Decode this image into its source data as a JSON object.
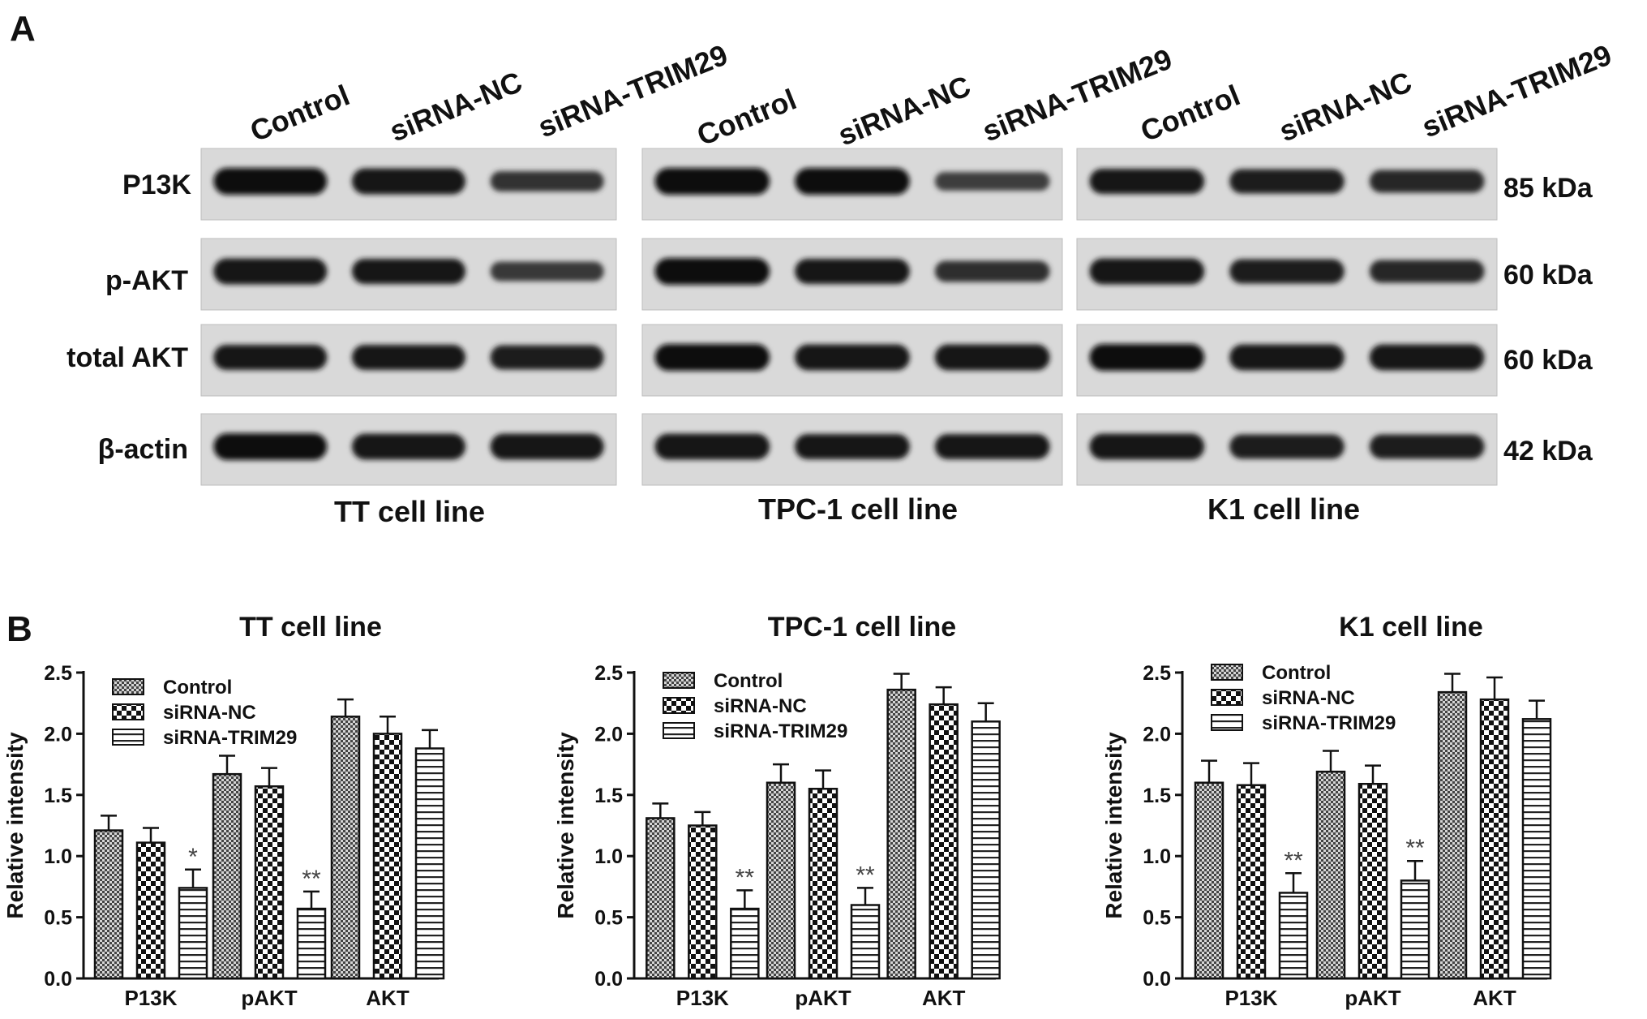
{
  "panel_a": {
    "label": "A",
    "lanes": [
      "Control",
      "siRNA-NC",
      "siRNA-TRIM29"
    ],
    "proteins": [
      {
        "name": "P13K",
        "weight": "85 kDa"
      },
      {
        "name": "p-AKT",
        "weight": "60 kDa"
      },
      {
        "name": "total AKT",
        "weight": "60 kDa"
      },
      {
        "name": "β-actin",
        "weight": "42 kDa"
      }
    ],
    "blots": [
      {
        "caption": "TT cell line",
        "band_intensity": [
          [
            0.95,
            0.9,
            0.55
          ],
          [
            0.9,
            0.85,
            0.5
          ],
          [
            0.85,
            0.85,
            0.8
          ],
          [
            0.95,
            0.9,
            0.9
          ]
        ]
      },
      {
        "caption": "TPC-1 cell line",
        "band_intensity": [
          [
            0.95,
            0.95,
            0.45
          ],
          [
            0.95,
            0.85,
            0.6
          ],
          [
            0.95,
            0.9,
            0.9
          ],
          [
            0.9,
            0.85,
            0.85
          ]
        ]
      },
      {
        "caption": "K1 cell line",
        "band_intensity": [
          [
            0.85,
            0.8,
            0.7
          ],
          [
            0.9,
            0.8,
            0.7
          ],
          [
            0.95,
            0.9,
            0.9
          ],
          [
            0.9,
            0.8,
            0.8
          ]
        ]
      }
    ]
  },
  "panel_b": {
    "label": "B"
  },
  "chart_data": [
    {
      "type": "bar",
      "title": "TT cell line",
      "xlabel": "",
      "ylabel": "Relative intensity",
      "ylim": [
        0,
        2.5
      ],
      "yticks": [
        "0.0",
        "0.5",
        "1.0",
        "1.5",
        "2.0",
        "2.5"
      ],
      "categories": [
        "P13K",
        "pAKT",
        "AKT"
      ],
      "series": [
        {
          "name": "Control",
          "values": [
            1.21,
            1.67,
            2.14
          ],
          "errors": [
            0.12,
            0.15,
            0.14
          ]
        },
        {
          "name": "siRNA-NC",
          "values": [
            1.11,
            1.57,
            2.0
          ],
          "errors": [
            0.12,
            0.15,
            0.14
          ]
        },
        {
          "name": "siRNA-TRIM29",
          "values": [
            0.74,
            0.57,
            1.88
          ],
          "errors": [
            0.15,
            0.14,
            0.15
          ]
        }
      ],
      "annotations": [
        {
          "category": "P13K",
          "series": "siRNA-TRIM29",
          "text": "*"
        },
        {
          "category": "pAKT",
          "series": "siRNA-TRIM29",
          "text": "**"
        }
      ],
      "legend": "top-left",
      "grid": false
    },
    {
      "type": "bar",
      "title": "TPC-1 cell line",
      "xlabel": "",
      "ylabel": "Relative intensity",
      "ylim": [
        0,
        2.5
      ],
      "yticks": [
        "0.0",
        "0.5",
        "1.0",
        "1.5",
        "2.0",
        "2.5"
      ],
      "categories": [
        "P13K",
        "pAKT",
        "AKT"
      ],
      "series": [
        {
          "name": "Control",
          "values": [
            1.31,
            1.6,
            2.36
          ],
          "errors": [
            0.12,
            0.15,
            0.13
          ]
        },
        {
          "name": "siRNA-NC",
          "values": [
            1.25,
            1.55,
            2.24
          ],
          "errors": [
            0.11,
            0.15,
            0.14
          ]
        },
        {
          "name": "siRNA-TRIM29",
          "values": [
            0.57,
            0.6,
            2.1
          ],
          "errors": [
            0.15,
            0.14,
            0.15
          ]
        }
      ],
      "annotations": [
        {
          "category": "P13K",
          "series": "siRNA-TRIM29",
          "text": "**"
        },
        {
          "category": "pAKT",
          "series": "siRNA-TRIM29",
          "text": "**"
        }
      ],
      "legend": "top-left",
      "grid": false
    },
    {
      "type": "bar",
      "title": "K1 cell line",
      "xlabel": "",
      "ylabel": "Relative intensity",
      "ylim": [
        0,
        2.5
      ],
      "yticks": [
        "0.0",
        "0.5",
        "1.0",
        "1.5",
        "2.0",
        "2.5"
      ],
      "categories": [
        "P13K",
        "pAKT",
        "AKT"
      ],
      "series": [
        {
          "name": "Control",
          "values": [
            1.6,
            1.69,
            2.34
          ],
          "errors": [
            0.18,
            0.17,
            0.15
          ]
        },
        {
          "name": "siRNA-NC",
          "values": [
            1.58,
            1.59,
            2.28
          ],
          "errors": [
            0.18,
            0.15,
            0.18
          ]
        },
        {
          "name": "siRNA-TRIM29",
          "values": [
            0.7,
            0.8,
            2.12
          ],
          "errors": [
            0.16,
            0.16,
            0.15
          ]
        }
      ],
      "annotations": [
        {
          "category": "P13K",
          "series": "siRNA-TRIM29",
          "text": "**"
        },
        {
          "category": "pAKT",
          "series": "siRNA-TRIM29",
          "text": "**"
        }
      ],
      "legend": "top-left",
      "grid": false
    }
  ]
}
